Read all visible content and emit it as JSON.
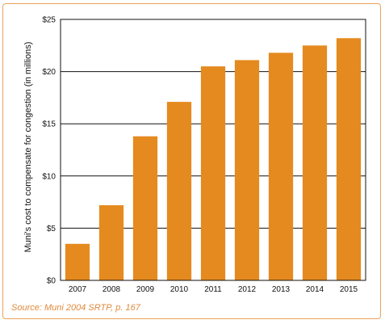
{
  "chart_data": {
    "type": "bar",
    "categories": [
      "2007",
      "2008",
      "2009",
      "2010",
      "2011",
      "2012",
      "2013",
      "2014",
      "2015"
    ],
    "values": [
      3.5,
      7.2,
      13.8,
      17.1,
      20.5,
      21.1,
      21.8,
      22.5,
      23.2
    ],
    "title": "",
    "xlabel": "",
    "ylabel": "Muni's cost to compensate for congestion (in millions)",
    "ylim": [
      0,
      25
    ],
    "yticks": [
      0,
      5,
      10,
      15,
      20,
      25
    ],
    "ytick_labels": [
      "$0",
      "$5",
      "$10",
      "$15",
      "$20",
      "$25"
    ],
    "grid": true,
    "bar_color": "#e58a1f"
  },
  "source_note": "Source: Muni 2004 SRTP, p. 167"
}
